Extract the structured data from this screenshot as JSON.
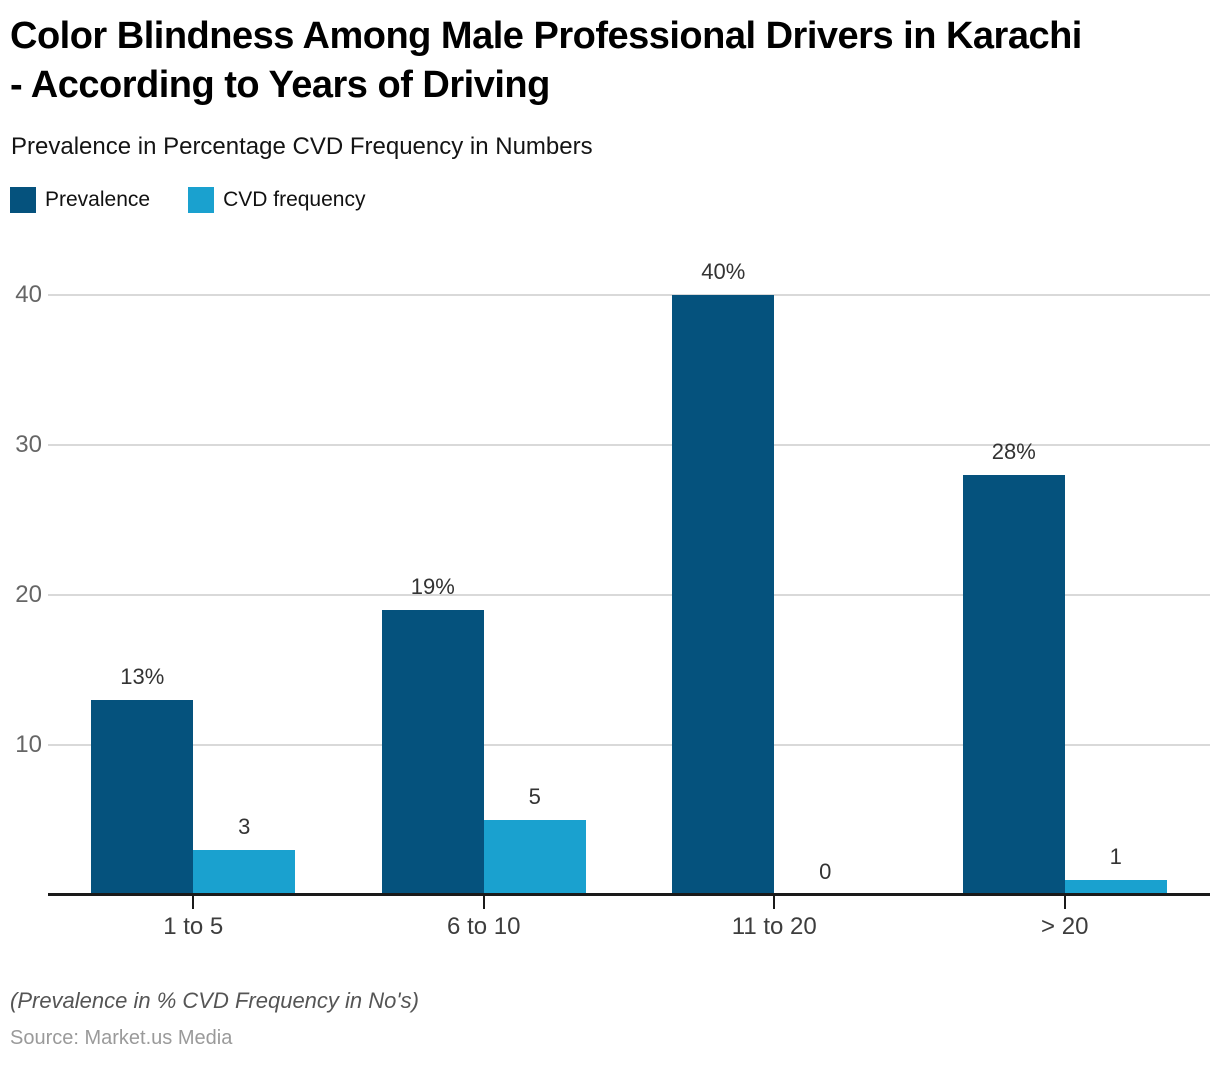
{
  "header": {
    "title_lines": [
      "Color Blindness Among Male Professional Drivers in Karachi",
      "- According to Years of Driving"
    ],
    "subtitle": "Prevalence in Percentage CVD Frequency in Numbers"
  },
  "chart_data": {
    "type": "bar",
    "title": "Color Blindness Among Male Professional Drivers in Karachi - According to Years of Driving",
    "subtitle": "Prevalence in Percentage CVD Frequency in Numbers",
    "categories": [
      "1 to 5",
      "6 to 10",
      "11 to 20",
      "> 20"
    ],
    "series": [
      {
        "name": "Prevalence",
        "color": "#05527D",
        "values": [
          13,
          19,
          40,
          28
        ],
        "value_labels": [
          "13%",
          "19%",
          "40%",
          "28%"
        ]
      },
      {
        "name": "CVD frequency",
        "color": "#1AA1CF",
        "values": [
          3,
          5,
          0,
          1
        ],
        "value_labels": [
          "3",
          "5",
          "0",
          "1"
        ]
      }
    ],
    "yticks": [
      10,
      20,
      30,
      40
    ],
    "ylim": [
      0,
      43
    ],
    "grid": true,
    "legend_position": "top-left",
    "xlabel": "",
    "ylabel": ""
  },
  "colors": {
    "background": "#ffffff",
    "axis": "#1a1a1a",
    "gridline": "#d9d9d9",
    "ytick_label": "#666666",
    "category_label": "#3d3d3d",
    "value_label": "#333333"
  },
  "footer": {
    "note": "(Prevalence in % CVD Frequency in No's)",
    "source": "Source: Market.us Media"
  }
}
